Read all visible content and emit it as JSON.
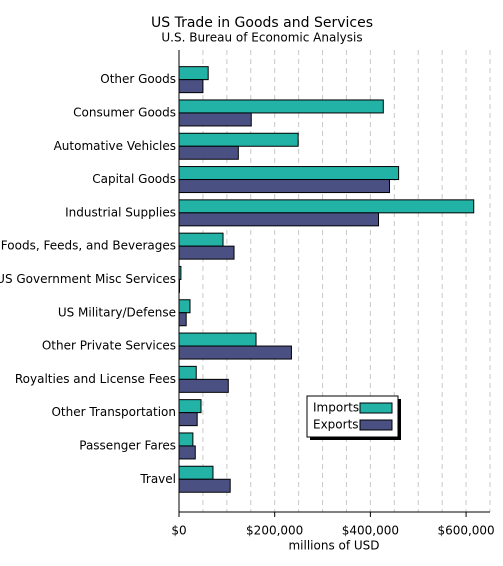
{
  "chart_data": {
    "type": "hbar",
    "title": "US Trade in Goods and Services",
    "subtitle": "U.S. Bureau of Economic Analysis",
    "xlabel": "millions of USD",
    "categories": [
      "Other Goods",
      "Consumer Goods",
      "Automative Vehicles",
      "Capital Goods",
      "Industrial Supplies",
      "Foods, Feeds, and Beverages",
      "US Government Misc Services",
      "US Military/Defense",
      "Other Private Services",
      "Royalties and License Fees",
      "Other Transportation",
      "Passenger Fares",
      "Travel"
    ],
    "series": [
      {
        "name": "Imports",
        "color": "#22b3a6",
        "values": [
          61000,
          427000,
          249000,
          459000,
          616000,
          92000,
          4000,
          23000,
          161000,
          36000,
          46000,
          29000,
          71000
        ]
      },
      {
        "name": "Exports",
        "color": "#4a5182",
        "values": [
          50000,
          151000,
          124000,
          440000,
          417000,
          115000,
          1000,
          15000,
          235000,
          103000,
          38000,
          34000,
          107000
        ]
      }
    ],
    "xlim": [
      0,
      650000
    ],
    "xticks": [
      {
        "value": 0,
        "label": "$0"
      },
      {
        "value": 200000,
        "label": "$200,000"
      },
      {
        "value": 400000,
        "label": "$400,000"
      },
      {
        "value": 600000,
        "label": "$600,000"
      }
    ],
    "grid_values": [
      50000,
      100000,
      150000,
      200000,
      250000,
      300000,
      350000,
      400000,
      450000,
      500000,
      550000,
      600000,
      650000
    ],
    "grid": true,
    "legend": "lower-right"
  }
}
